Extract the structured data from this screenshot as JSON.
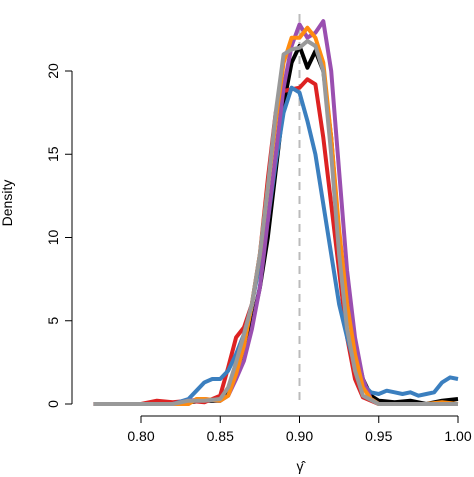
{
  "chart_data": {
    "type": "line",
    "title": "",
    "xlabel": "γ̂",
    "ylabel": "Density",
    "xlim": [
      0.77,
      1.0
    ],
    "ylim": [
      0,
      23
    ],
    "xticks": [
      0.8,
      0.85,
      0.9,
      0.95,
      1.0
    ],
    "xtick_labels": [
      "0.80",
      "0.85",
      "0.90",
      "0.95",
      "1.00"
    ],
    "yticks": [
      0,
      5,
      10,
      15,
      20
    ],
    "ytick_labels": [
      "0",
      "5",
      "10",
      "15",
      "20"
    ],
    "grid": false,
    "legend": "none",
    "reference_line": {
      "x": 0.9,
      "style": "dashed",
      "color": "#bbbbbb"
    },
    "series": [
      {
        "color": "#000000",
        "points": [
          [
            0.78,
            0
          ],
          [
            0.82,
            0
          ],
          [
            0.83,
            0.1
          ],
          [
            0.84,
            0.2
          ],
          [
            0.85,
            0.2
          ],
          [
            0.855,
            0.6
          ],
          [
            0.86,
            2.0
          ],
          [
            0.865,
            3.2
          ],
          [
            0.87,
            4.8
          ],
          [
            0.875,
            7.0
          ],
          [
            0.88,
            10.0
          ],
          [
            0.885,
            14.0
          ],
          [
            0.89,
            18.0
          ],
          [
            0.895,
            20.5
          ],
          [
            0.9,
            21.5
          ],
          [
            0.905,
            20.2
          ],
          [
            0.91,
            21.2
          ],
          [
            0.915,
            20.0
          ],
          [
            0.92,
            16.0
          ],
          [
            0.925,
            10.0
          ],
          [
            0.93,
            6.0
          ],
          [
            0.935,
            3.5
          ],
          [
            0.94,
            1.5
          ],
          [
            0.945,
            0.5
          ],
          [
            0.95,
            0.2
          ],
          [
            0.96,
            0.1
          ],
          [
            0.97,
            0.2
          ],
          [
            0.98,
            0
          ],
          [
            0.99,
            0.2
          ],
          [
            1.0,
            0.3
          ]
        ]
      },
      {
        "color": "#dd2222",
        "points": [
          [
            0.77,
            0
          ],
          [
            0.8,
            0
          ],
          [
            0.81,
            0.2
          ],
          [
            0.82,
            0.1
          ],
          [
            0.83,
            0.2
          ],
          [
            0.84,
            0.1
          ],
          [
            0.85,
            0.5
          ],
          [
            0.855,
            2.2
          ],
          [
            0.86,
            4.0
          ],
          [
            0.865,
            4.6
          ],
          [
            0.87,
            6.0
          ],
          [
            0.875,
            9.0
          ],
          [
            0.88,
            13.5
          ],
          [
            0.885,
            17.5
          ],
          [
            0.89,
            18.8
          ],
          [
            0.895,
            18.9
          ],
          [
            0.9,
            19.0
          ],
          [
            0.905,
            19.5
          ],
          [
            0.91,
            19.2
          ],
          [
            0.915,
            16.0
          ],
          [
            0.92,
            12.0
          ],
          [
            0.925,
            8.0
          ],
          [
            0.93,
            4.0
          ],
          [
            0.935,
            1.5
          ],
          [
            0.94,
            0.4
          ],
          [
            0.95,
            0
          ],
          [
            1.0,
            0
          ]
        ]
      },
      {
        "color": "#3b7fbf",
        "points": [
          [
            0.78,
            0
          ],
          [
            0.82,
            0
          ],
          [
            0.83,
            0.3
          ],
          [
            0.835,
            0.8
          ],
          [
            0.84,
            1.3
          ],
          [
            0.845,
            1.5
          ],
          [
            0.85,
            1.5
          ],
          [
            0.855,
            2.0
          ],
          [
            0.86,
            3.0
          ],
          [
            0.865,
            4.2
          ],
          [
            0.87,
            6.0
          ],
          [
            0.875,
            8.5
          ],
          [
            0.88,
            11.0
          ],
          [
            0.885,
            14.5
          ],
          [
            0.89,
            17.5
          ],
          [
            0.895,
            19.0
          ],
          [
            0.9,
            18.7
          ],
          [
            0.905,
            17.0
          ],
          [
            0.91,
            15.0
          ],
          [
            0.915,
            12.0
          ],
          [
            0.92,
            9.0
          ],
          [
            0.925,
            6.0
          ],
          [
            0.93,
            4.0
          ],
          [
            0.935,
            2.3
          ],
          [
            0.94,
            1.2
          ],
          [
            0.945,
            0.7
          ],
          [
            0.95,
            0.6
          ],
          [
            0.955,
            0.8
          ],
          [
            0.96,
            0.7
          ],
          [
            0.965,
            0.6
          ],
          [
            0.97,
            0.7
          ],
          [
            0.975,
            0.5
          ],
          [
            0.98,
            0.6
          ],
          [
            0.985,
            0.7
          ],
          [
            0.99,
            1.3
          ],
          [
            0.995,
            1.6
          ],
          [
            1.0,
            1.5
          ]
        ]
      },
      {
        "color": "#9a4fb0",
        "points": [
          [
            0.78,
            0
          ],
          [
            0.82,
            0
          ],
          [
            0.83,
            0.2
          ],
          [
            0.84,
            0.3
          ],
          [
            0.85,
            0.2
          ],
          [
            0.855,
            0.5
          ],
          [
            0.86,
            1.5
          ],
          [
            0.865,
            2.6
          ],
          [
            0.87,
            4.5
          ],
          [
            0.875,
            7.0
          ],
          [
            0.88,
            11.0
          ],
          [
            0.885,
            15.0
          ],
          [
            0.89,
            19.0
          ],
          [
            0.895,
            21.5
          ],
          [
            0.9,
            22.8
          ],
          [
            0.905,
            22.0
          ],
          [
            0.91,
            22.3
          ],
          [
            0.915,
            23.0
          ],
          [
            0.92,
            20.0
          ],
          [
            0.925,
            14.0
          ],
          [
            0.93,
            8.0
          ],
          [
            0.935,
            4.0
          ],
          [
            0.94,
            1.5
          ],
          [
            0.945,
            0.3
          ],
          [
            0.95,
            0
          ],
          [
            1.0,
            0
          ]
        ]
      },
      {
        "color": "#ff8c10",
        "points": [
          [
            0.78,
            0
          ],
          [
            0.83,
            0
          ],
          [
            0.835,
            0.3
          ],
          [
            0.84,
            0.3
          ],
          [
            0.85,
            0.2
          ],
          [
            0.855,
            0.5
          ],
          [
            0.86,
            1.8
          ],
          [
            0.865,
            3.5
          ],
          [
            0.87,
            6.0
          ],
          [
            0.875,
            9.0
          ],
          [
            0.88,
            13.0
          ],
          [
            0.885,
            17.0
          ],
          [
            0.89,
            20.5
          ],
          [
            0.895,
            22.0
          ],
          [
            0.9,
            22.0
          ],
          [
            0.905,
            22.6
          ],
          [
            0.91,
            22.0
          ],
          [
            0.915,
            20.5
          ],
          [
            0.92,
            16.0
          ],
          [
            0.925,
            10.5
          ],
          [
            0.93,
            6.0
          ],
          [
            0.935,
            3.0
          ],
          [
            0.94,
            1.0
          ],
          [
            0.945,
            0.3
          ],
          [
            0.95,
            0
          ],
          [
            0.98,
            0
          ],
          [
            0.99,
            0.1
          ],
          [
            1.0,
            0
          ]
        ]
      },
      {
        "color": "#999999",
        "points": [
          [
            0.77,
            0
          ],
          [
            0.8,
            0
          ],
          [
            0.82,
            0
          ],
          [
            0.83,
            0.2
          ],
          [
            0.84,
            0.2
          ],
          [
            0.85,
            0.3
          ],
          [
            0.855,
            1.0
          ],
          [
            0.86,
            2.5
          ],
          [
            0.865,
            4.2
          ],
          [
            0.87,
            6.0
          ],
          [
            0.875,
            9.0
          ],
          [
            0.88,
            13.0
          ],
          [
            0.885,
            17.5
          ],
          [
            0.89,
            21.0
          ],
          [
            0.895,
            21.3
          ],
          [
            0.9,
            21.4
          ],
          [
            0.905,
            21.8
          ],
          [
            0.91,
            21.5
          ],
          [
            0.915,
            20.0
          ],
          [
            0.92,
            15.0
          ],
          [
            0.925,
            9.0
          ],
          [
            0.93,
            4.5
          ],
          [
            0.935,
            2.0
          ],
          [
            0.94,
            0.5
          ],
          [
            0.95,
            0
          ],
          [
            1.0,
            0
          ]
        ]
      }
    ]
  }
}
